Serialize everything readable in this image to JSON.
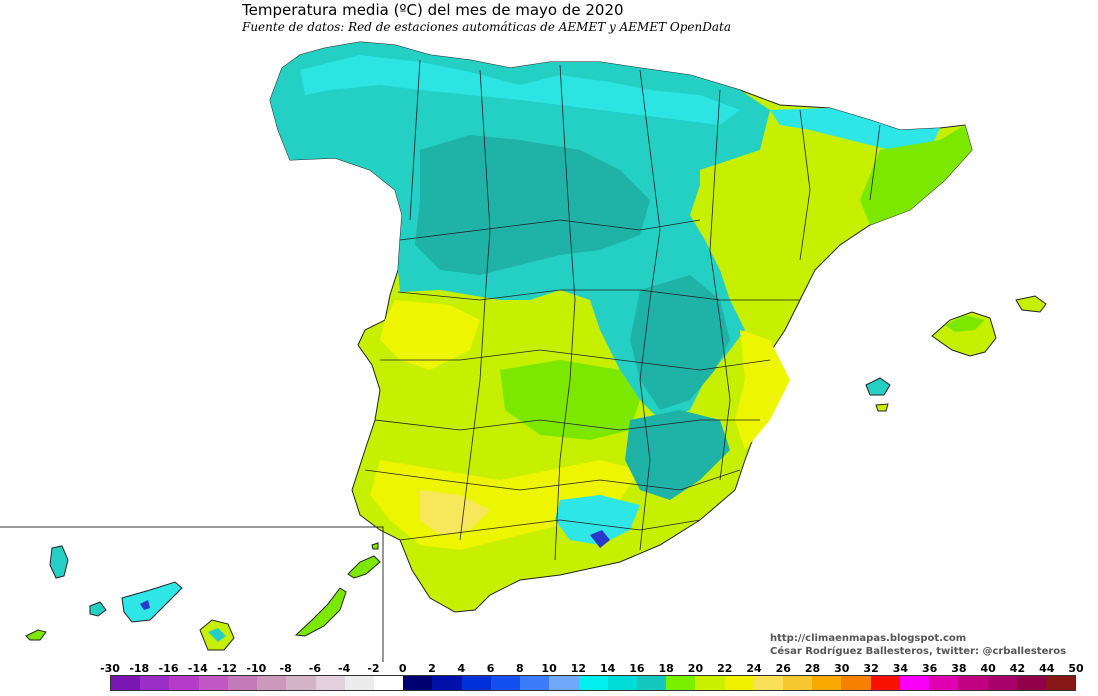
{
  "header": {
    "title": "Temperatura media (ºC) del mes de mayo  de 2020",
    "subtitle": "Fuente de datos: Red de estaciones automáticas de AEMET y AEMET OpenData"
  },
  "credits": {
    "website": "http://climaenmapas.blogspot.com",
    "author": "César Rodríguez Ballesteros, twitter: @crballesteros"
  },
  "legend": {
    "labels": [
      "-30",
      "-18",
      "-16",
      "-14",
      "-12",
      "-10",
      "-8",
      "-6",
      "-4",
      "-2",
      "0",
      "2",
      "4",
      "6",
      "8",
      "10",
      "12",
      "14",
      "16",
      "18",
      "20",
      "22",
      "24",
      "26",
      "28",
      "30",
      "32",
      "34",
      "36",
      "38",
      "40",
      "42",
      "44",
      "50"
    ],
    "colors": [
      "#7a16b4",
      "#9a2ec6",
      "#b43cc8",
      "#c258c4",
      "#c27ab8",
      "#cc98bc",
      "#d4b4c8",
      "#e2d0dc",
      "#ececec",
      "#ffffff",
      "#000070",
      "#0010a8",
      "#0030d8",
      "#1450f0",
      "#3c7cf8",
      "#70a8fc",
      "#00f0f0",
      "#00dcd8",
      "#14c8c0",
      "#78f000",
      "#c8f000",
      "#f0f000",
      "#f8e058",
      "#f8c830",
      "#f8a800",
      "#f88000",
      "#f81000",
      "#f800f8",
      "#e000b0",
      "#c00080",
      "#a80068",
      "#900048",
      "#881818"
    ]
  },
  "colors": {
    "teal_dark": "#1fb3a8",
    "teal": "#24cfc4",
    "cyan": "#2ee6e6",
    "green": "#7ce800",
    "yellow_green": "#c6f000",
    "yellow": "#eef500",
    "light_yellow": "#f6e85a",
    "blue_patch": "#2838c8",
    "border": "#222222"
  }
}
